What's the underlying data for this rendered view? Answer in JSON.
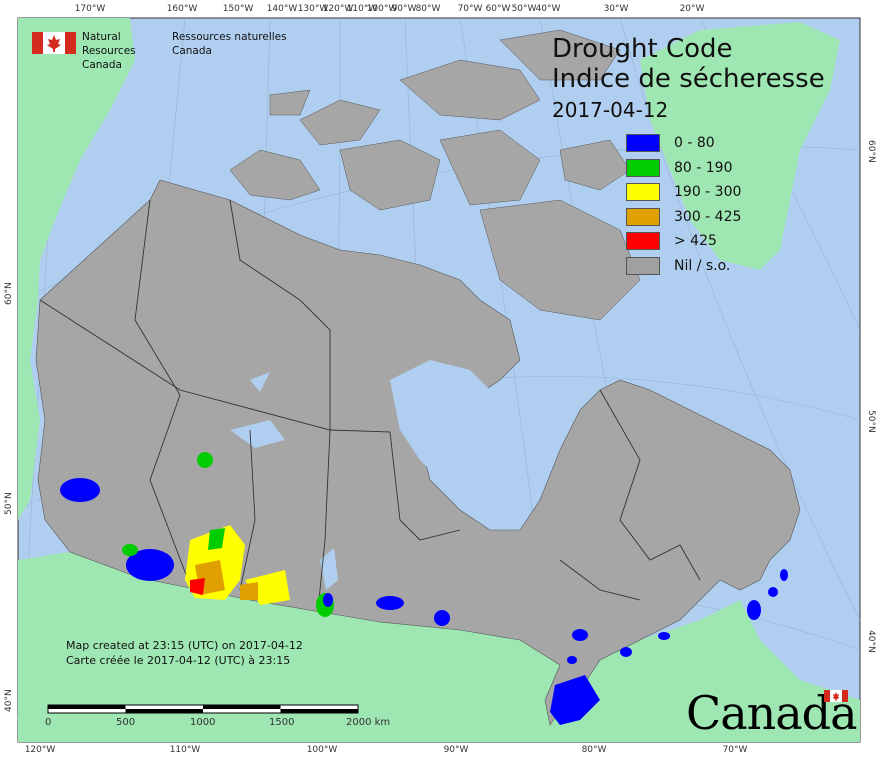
{
  "title": {
    "en": "Drought Code",
    "fr": "Indice de sécheresse",
    "date": "2017-04-12"
  },
  "agency": {
    "en_line1": "Natural Resources",
    "en_line2": "Canada",
    "fr_line1": "Ressources naturelles",
    "fr_line2": "Canada"
  },
  "legend": [
    {
      "label": "0 - 80",
      "color": "#0000ff"
    },
    {
      "label": "80 - 190",
      "color": "#00cc00"
    },
    {
      "label": "190 - 300",
      "color": "#ffff00"
    },
    {
      "label": "300 - 425",
      "color": "#e0a000"
    },
    {
      "label": "> 425",
      "color": "#ff0000"
    },
    {
      "label": "Nil / s.o.",
      "color": "#a0a0a0"
    }
  ],
  "credit": {
    "line1": "Map created at 23:15 (UTC) on 2017-04-12",
    "line2": "Carte créée le 2017-04-12 (UTC) à 23:15"
  },
  "scale": {
    "labels": [
      "0",
      "500",
      "1000",
      "1500",
      "2000  km"
    ]
  },
  "top_ticks": [
    "170°W",
    "160°W",
    "150°W",
    "140°W",
    "130°W",
    "120°W",
    "110°W",
    "100°W",
    "90°W",
    "80°W",
    "70°W",
    "60°W",
    "50°W",
    "40°W",
    "30°W",
    "20°W"
  ],
  "bottom_ticks": [
    "120°W",
    "110°W",
    "100°W",
    "90°W",
    "80°W",
    "70°W"
  ],
  "left_ticks": [
    "60°N",
    "50°N",
    "40°N"
  ],
  "right_ticks": [
    "60°N",
    "50°N",
    "40°N"
  ],
  "wordmark": "Canada",
  "colors": {
    "ocean": "#b0cff0",
    "land_other": "#9ee6b2",
    "canada": "#a6a6a6",
    "border": "#333333",
    "lake": "#b0cff0"
  }
}
